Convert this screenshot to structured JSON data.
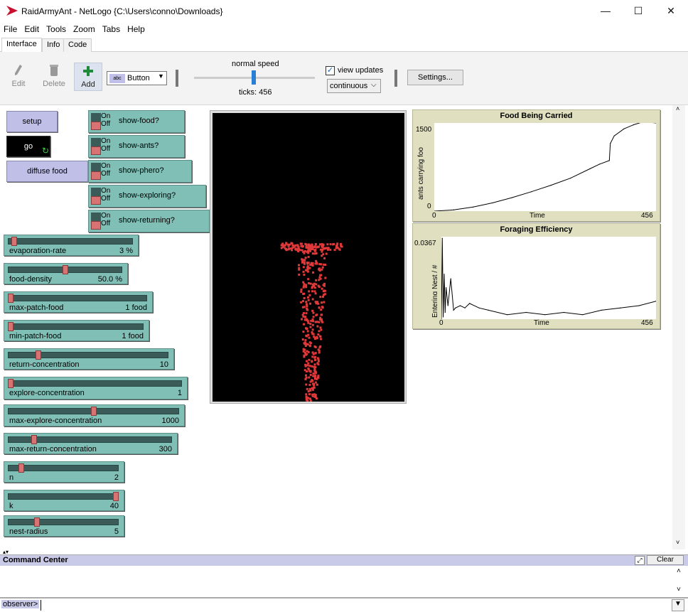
{
  "window": {
    "title": "RaidArmyAnt - NetLogo {C:\\Users\\conno\\Downloads}",
    "minimize": "—",
    "maximize": "☐",
    "close": "✕"
  },
  "menu": [
    "File",
    "Edit",
    "Tools",
    "Zoom",
    "Tabs",
    "Help"
  ],
  "tabs": [
    "Interface",
    "Info",
    "Code"
  ],
  "toolbar": {
    "edit": "Edit",
    "delete": "Delete",
    "add": "Add",
    "widget_type": "Button",
    "speed_label": "normal speed",
    "ticks_label": "ticks: 456",
    "view_updates_label": "view updates",
    "view_updates_checked": true,
    "update_mode": "continuous",
    "settings": "Settings..."
  },
  "buttons": {
    "setup": "setup",
    "go": "go",
    "diffuse_food": "diffuse food"
  },
  "switches": [
    {
      "name": "show-food?",
      "on": false
    },
    {
      "name": "show-ants?",
      "on": false
    },
    {
      "name": "show-phero?",
      "on": false
    },
    {
      "name": "show-exploring?",
      "on": false
    },
    {
      "name": "show-returning?",
      "on": false
    }
  ],
  "switch_on_text": "On",
  "switch_off_text": "Off",
  "sliders": [
    {
      "name": "evaporation-rate",
      "value": "3 %",
      "position": 0.03
    },
    {
      "name": "food-density",
      "value": "50.0 %",
      "position": 0.5
    },
    {
      "name": "max-patch-food",
      "value": "1 food",
      "position": 0.0
    },
    {
      "name": "min-patch-food",
      "value": "1 food",
      "position": 0.0
    },
    {
      "name": "return-concentration",
      "value": "10",
      "position": 0.18
    },
    {
      "name": "explore-concentration",
      "value": "1",
      "position": 0.0
    },
    {
      "name": "max-explore-concentration",
      "value": "1000",
      "position": 0.5
    },
    {
      "name": "max-return-concentration",
      "value": "300",
      "position": 0.15
    },
    {
      "name": "n",
      "value": "2",
      "position": 0.1
    },
    {
      "name": "k",
      "value": "40",
      "position": 1.0
    },
    {
      "name": "nest-radius",
      "value": "5",
      "position": 0.25
    }
  ],
  "plot1": {
    "title": "Food Being Carried",
    "ylabel": "ants carrying foo",
    "xlabel": "Time",
    "xmin": "0",
    "xmax": "456",
    "ymin": "0",
    "ymax": "1500"
  },
  "plot2": {
    "title": "Foraging Efficiency",
    "ylabel": "Entering Nest / #",
    "xlabel": "Time",
    "xmin": "0",
    "xmax": "456",
    "ymin": "0",
    "ymax": "0.0367"
  },
  "chart_data": [
    {
      "type": "line",
      "title": "Food Being Carried",
      "xlabel": "Time",
      "ylabel": "ants carrying foo",
      "xlim": [
        0,
        456
      ],
      "ylim": [
        0,
        1500
      ],
      "x": [
        0,
        40,
        80,
        120,
        160,
        200,
        240,
        280,
        320,
        340,
        360,
        362,
        370,
        390,
        410,
        430,
        456
      ],
      "y": [
        0,
        20,
        70,
        140,
        230,
        330,
        440,
        560,
        720,
        800,
        860,
        1150,
        1280,
        1400,
        1470,
        1520,
        1500
      ]
    },
    {
      "type": "line",
      "title": "Foraging Efficiency",
      "xlabel": "Time",
      "ylabel": "Entering Nest / #",
      "xlim": [
        0,
        456
      ],
      "ylim": [
        0,
        0.0367
      ],
      "x": [
        0,
        2,
        4,
        6,
        8,
        10,
        14,
        20,
        26,
        30,
        40,
        50,
        60,
        80,
        100,
        140,
        180,
        220,
        260,
        300,
        340,
        380,
        420,
        456
      ],
      "y": [
        0,
        0.036,
        0.001,
        0.02,
        0.003,
        0.014,
        0.006,
        0.018,
        0.004,
        0.005,
        0.006,
        0.005,
        0.007,
        0.005,
        0.004,
        0.002,
        0.003,
        0.002,
        0.003,
        0.002,
        0.004,
        0.005,
        0.006,
        0.008
      ]
    }
  ],
  "command_center": {
    "title": "Command Center",
    "clear": "Clear",
    "prompt": "observer>"
  }
}
